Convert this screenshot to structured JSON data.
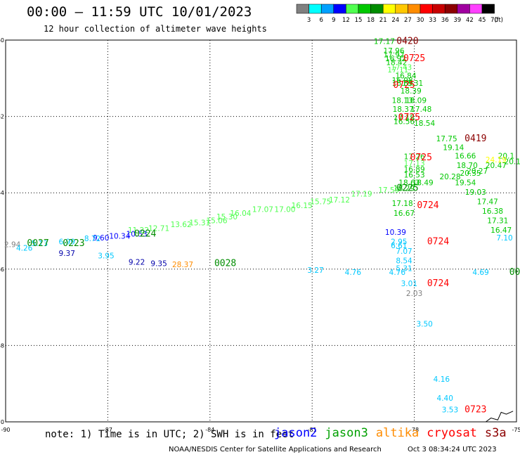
{
  "title": "00:00 – 11:59 UTC 10/01/2023",
  "subtitle": "12 hour collection of altimeter wave heights",
  "colorbar": {
    "unit": "(ft)",
    "stops": [
      {
        "label": "3",
        "color": "#808080"
      },
      {
        "label": "6",
        "color": "#00ffff"
      },
      {
        "label": "9",
        "color": "#00a0ff"
      },
      {
        "label": "12",
        "color": "#0000ff"
      },
      {
        "label": "15",
        "color": "#50ff50"
      },
      {
        "label": "18",
        "color": "#00c800"
      },
      {
        "label": "21",
        "color": "#008c00"
      },
      {
        "label": "24",
        "color": "#ffff00"
      },
      {
        "label": "27",
        "color": "#ffc800"
      },
      {
        "label": "30",
        "color": "#ff8c00"
      },
      {
        "label": "33",
        "color": "#ff0000"
      },
      {
        "label": "36",
        "color": "#c80000"
      },
      {
        "label": "39",
        "color": "#8c0000"
      },
      {
        "label": "42",
        "color": "#a000a0"
      },
      {
        "label": "45",
        "color": "#ff40ff"
      },
      {
        "label": "70",
        "color": "#000000"
      }
    ]
  },
  "map": {
    "lon_range": [
      -90,
      -75
    ],
    "lat_range": [
      -70,
      -60
    ],
    "lon_ticks": [
      "-90",
      "-87",
      "-84",
      "-81",
      "-78",
      "-75"
    ],
    "lat_ticks": [
      "-60",
      "-62",
      "-64",
      "-66",
      "-68",
      "-70"
    ],
    "grid": true
  },
  "observations": [
    {
      "t": "17.17",
      "c": "#00c800",
      "lon": -78.88,
      "lat": -60.1
    },
    {
      "t": "17.96",
      "c": "#00c800",
      "lon": -78.6,
      "lat": -60.35
    },
    {
      "t": "17.92",
      "c": "#00c800",
      "lon": -78.6,
      "lat": -60.45
    },
    {
      "t": "18.42",
      "c": "#00c800",
      "lon": -78.52,
      "lat": -60.65
    },
    {
      "t": "16.92",
      "c": "#00c800",
      "lon": -78.55,
      "lat": -60.55
    },
    {
      "t": "17.43",
      "c": "#50ff50",
      "lon": -78.38,
      "lat": -60.78
    },
    {
      "t": "17.11",
      "c": "#50ff50",
      "lon": -78.48,
      "lat": -60.85
    },
    {
      "t": "16.84",
      "c": "#00c800",
      "lon": -78.25,
      "lat": -61.0
    },
    {
      "t": "16.98",
      "c": "#00c800",
      "lon": -78.35,
      "lat": -61.12
    },
    {
      "t": "16.89",
      "c": "#00c800",
      "lon": -78.35,
      "lat": -61.2
    },
    {
      "t": "18.31",
      "c": "#00c800",
      "lon": -78.05,
      "lat": -61.2
    },
    {
      "t": "18.39",
      "c": "#00c800",
      "lon": -78.1,
      "lat": -61.4
    },
    {
      "t": "18.13",
      "c": "#00c800",
      "lon": -78.35,
      "lat": -61.65
    },
    {
      "t": "18.09",
      "c": "#00c800",
      "lon": -77.95,
      "lat": -61.65
    },
    {
      "t": "18.37",
      "c": "#00c800",
      "lon": -78.33,
      "lat": -61.88
    },
    {
      "t": "17.48",
      "c": "#00c800",
      "lon": -77.8,
      "lat": -61.88
    },
    {
      "t": "17.18",
      "c": "#00c800",
      "lon": -78.3,
      "lat": -62.1
    },
    {
      "t": "16.56",
      "c": "#00c800",
      "lon": -78.3,
      "lat": -62.2
    },
    {
      "t": "18.54",
      "c": "#00c800",
      "lon": -77.7,
      "lat": -62.25
    },
    {
      "t": "17.75",
      "c": "#00c800",
      "lon": -77.05,
      "lat": -62.65
    },
    {
      "t": "19.14",
      "c": "#00c800",
      "lon": -76.85,
      "lat": -62.88
    },
    {
      "t": "16.66",
      "c": "#00c800",
      "lon": -76.5,
      "lat": -63.1
    },
    {
      "t": "17.26",
      "c": "#00c800",
      "lon": -78.0,
      "lat": -63.12
    },
    {
      "t": "17.13",
      "c": "#50ff50",
      "lon": -78.0,
      "lat": -63.3
    },
    {
      "t": "16.89",
      "c": "#00c800",
      "lon": -78.0,
      "lat": -63.45
    },
    {
      "t": "16.53",
      "c": "#00c800",
      "lon": -78.0,
      "lat": -63.6
    },
    {
      "t": "18.70",
      "c": "#00c800",
      "lon": -76.45,
      "lat": -63.35
    },
    {
      "t": "20.27",
      "c": "#00c800",
      "lon": -76.15,
      "lat": -63.5
    },
    {
      "t": "20.47",
      "c": "#00c800",
      "lon": -75.6,
      "lat": -63.35
    },
    {
      "t": "20.15",
      "c": "#00c800",
      "lon": -75.05,
      "lat": -63.25
    },
    {
      "t": "20.28",
      "c": "#00c800",
      "lon": -76.95,
      "lat": -63.65
    },
    {
      "t": "20.35",
      "c": "#00c800",
      "lon": -76.35,
      "lat": -63.55
    },
    {
      "t": "19.54",
      "c": "#00c800",
      "lon": -76.5,
      "lat": -63.8
    },
    {
      "t": "19.03",
      "c": "#00c800",
      "lon": -76.2,
      "lat": -64.05
    },
    {
      "t": "17.47",
      "c": "#00c800",
      "lon": -75.85,
      "lat": -64.3
    },
    {
      "t": "16.38",
      "c": "#00c800",
      "lon": -75.7,
      "lat": -64.55
    },
    {
      "t": "17.31",
      "c": "#00c800",
      "lon": -75.55,
      "lat": -64.8
    },
    {
      "t": "16.47",
      "c": "#00c800",
      "lon": -75.45,
      "lat": -65.05
    },
    {
      "t": "7.10",
      "c": "#00c8ff",
      "lon": -75.35,
      "lat": -65.25
    },
    {
      "t": "18.63",
      "c": "#00c800",
      "lon": -78.15,
      "lat": -63.8
    },
    {
      "t": "18.49",
      "c": "#00c800",
      "lon": -77.75,
      "lat": -63.8
    },
    {
      "t": "18.29",
      "c": "#00c800",
      "lon": -78.3,
      "lat": -63.95
    },
    {
      "t": "17.59",
      "c": "#50ff50",
      "lon": -78.75,
      "lat": -64.0
    },
    {
      "t": "17.18",
      "c": "#00c800",
      "lon": -78.35,
      "lat": -64.35
    },
    {
      "t": "16.67",
      "c": "#00c800",
      "lon": -78.3,
      "lat": -64.6
    },
    {
      "t": "17.19",
      "c": "#50ff50",
      "lon": -79.55,
      "lat": -64.1
    },
    {
      "t": "17.12",
      "c": "#50ff50",
      "lon": -80.2,
      "lat": -64.25
    },
    {
      "t": "15.75",
      "c": "#50ff50",
      "lon": -80.75,
      "lat": -64.3
    },
    {
      "t": "16.15",
      "c": "#50ff50",
      "lon": -81.3,
      "lat": -64.4
    },
    {
      "t": "17.00",
      "c": "#50ff50",
      "lon": -81.8,
      "lat": -64.5
    },
    {
      "t": "17.07",
      "c": "#50ff50",
      "lon": -82.45,
      "lat": -64.5
    },
    {
      "t": "16.04",
      "c": "#50ff50",
      "lon": -83.1,
      "lat": -64.6
    },
    {
      "t": "15.30",
      "c": "#50ff50",
      "lon": -83.5,
      "lat": -64.7
    },
    {
      "t": "15.06",
      "c": "#50ff50",
      "lon": -83.8,
      "lat": -64.8
    },
    {
      "t": "15.31",
      "c": "#50ff50",
      "lon": -84.3,
      "lat": -64.85
    },
    {
      "t": "13.62",
      "c": "#50ff50",
      "lon": -84.85,
      "lat": -64.9
    },
    {
      "t": "12.71",
      "c": "#50ff50",
      "lon": -85.5,
      "lat": -65.0
    },
    {
      "t": "11.22",
      "c": "#50ff50",
      "lon": -86.1,
      "lat": -65.05
    },
    {
      "t": "10.53",
      "c": "#0000ff",
      "lon": -86.15,
      "lat": -65.15
    },
    {
      "t": "10.34",
      "c": "#0000ff",
      "lon": -86.65,
      "lat": -65.2
    },
    {
      "t": "9.60",
      "c": "#0000ff",
      "lon": -87.2,
      "lat": -65.25
    },
    {
      "t": "8.72",
      "c": "#00c8ff",
      "lon": -87.45,
      "lat": -65.27
    },
    {
      "t": "6.99",
      "c": "#00c8ff",
      "lon": -88.2,
      "lat": -65.35
    },
    {
      "t": "5.13",
      "c": "#00c8ff",
      "lon": -89.0,
      "lat": -65.4
    },
    {
      "t": "2.94",
      "c": "#808080",
      "lon": -89.8,
      "lat": -65.42
    },
    {
      "t": "4.26",
      "c": "#00c8ff",
      "lon": -89.45,
      "lat": -65.52
    },
    {
      "t": "9.37",
      "c": "#0000aa",
      "lon": -88.2,
      "lat": -65.65
    },
    {
      "t": "3.95",
      "c": "#00c8ff",
      "lon": -87.05,
      "lat": -65.72
    },
    {
      "t": "9.22",
      "c": "#0000aa",
      "lon": -86.15,
      "lat": -65.88
    },
    {
      "t": "9.35",
      "c": "#0000aa",
      "lon": -85.5,
      "lat": -65.92
    },
    {
      "t": "28.37",
      "c": "#ff8c00",
      "lon": -84.8,
      "lat": -65.95
    },
    {
      "t": "3.27",
      "c": "#00c8ff",
      "lon": -80.9,
      "lat": -66.1
    },
    {
      "t": "4.76",
      "c": "#00c8ff",
      "lon": -79.8,
      "lat": -66.15
    },
    {
      "t": "10.39",
      "c": "#0000ff",
      "lon": -78.55,
      "lat": -65.1
    },
    {
      "t": "2.95",
      "c": "#00c8ff",
      "lon": -78.45,
      "lat": -65.35
    },
    {
      "t": "6.61",
      "c": "#00c8ff",
      "lon": -78.45,
      "lat": -65.45
    },
    {
      "t": "7.07",
      "c": "#00c8ff",
      "lon": -78.3,
      "lat": -65.6
    },
    {
      "t": "8.54",
      "c": "#00c8ff",
      "lon": -78.3,
      "lat": -65.85
    },
    {
      "t": "5.31",
      "c": "#00c8ff",
      "lon": -78.3,
      "lat": -66.05
    },
    {
      "t": "4.76",
      "c": "#00c8ff",
      "lon": -78.5,
      "lat": -66.15
    },
    {
      "t": "3.01",
      "c": "#00c8ff",
      "lon": -78.15,
      "lat": -66.45
    },
    {
      "t": "2.03",
      "c": "#808080",
      "lon": -78.0,
      "lat": -66.7
    },
    {
      "t": "3.50",
      "c": "#00c8ff",
      "lon": -77.7,
      "lat": -67.5
    },
    {
      "t": "4.69",
      "c": "#00c8ff",
      "lon": -76.05,
      "lat": -66.15
    },
    {
      "t": "4.16",
      "c": "#00c8ff",
      "lon": -77.2,
      "lat": -68.95
    },
    {
      "t": "4.40",
      "c": "#00c8ff",
      "lon": -77.1,
      "lat": -69.45
    },
    {
      "t": "3.53",
      "c": "#00c8ff",
      "lon": -76.95,
      "lat": -69.75
    },
    {
      "t": "20.1",
      "c": "#00c800",
      "lon": -75.3,
      "lat": -63.1
    },
    {
      "t": "24.19",
      "c": "#ffff00",
      "lon": -75.6,
      "lat": -63.2
    }
  ],
  "time_labels": [
    {
      "t": "0420",
      "c": "#8c0000",
      "lon": -78.2,
      "lat": -60.1
    },
    {
      "t": "0725",
      "c": "#ff0000",
      "lon": -78.0,
      "lat": -60.55
    },
    {
      "t": "0725",
      "c": "#ff0000",
      "lon": -78.3,
      "lat": -61.25
    },
    {
      "t": "0725",
      "c": "#ff0000",
      "lon": -78.15,
      "lat": -62.1
    },
    {
      "t": "0419",
      "c": "#8c0000",
      "lon": -76.2,
      "lat": -62.65
    },
    {
      "t": "0725",
      "c": "#ff0000",
      "lon": -77.8,
      "lat": -63.15
    },
    {
      "t": "0225",
      "c": "#008c00",
      "lon": -78.2,
      "lat": -63.95
    },
    {
      "t": "0724",
      "c": "#ff0000",
      "lon": -77.6,
      "lat": -64.4
    },
    {
      "t": "0724",
      "c": "#ff0000",
      "lon": -77.3,
      "lat": -65.35
    },
    {
      "t": "0724",
      "c": "#ff0000",
      "lon": -77.3,
      "lat": -66.45
    },
    {
      "t": "0224",
      "c": "#008c00",
      "lon": -85.9,
      "lat": -65.15
    },
    {
      "t": "0223",
      "c": "#008c00",
      "lon": -88.0,
      "lat": -65.4
    },
    {
      "t": "0027",
      "c": "#008c00",
      "lon": -89.05,
      "lat": -65.4
    },
    {
      "t": "0028",
      "c": "#008c00",
      "lon": -83.55,
      "lat": -65.92
    },
    {
      "t": "0723",
      "c": "#ff0000",
      "lon": -76.2,
      "lat": -69.75
    },
    {
      "t": "00",
      "c": "#008c00",
      "lon": -75.05,
      "lat": -66.15
    }
  ],
  "footer": {
    "note": "note: 1) Time is in UTC; 2) SWH is in feet",
    "satellites": [
      {
        "name": "jason2",
        "color": "#0000ff"
      },
      {
        "name": "jason3",
        "color": "#00a000"
      },
      {
        "name": "altika",
        "color": "#ff8c00"
      },
      {
        "name": "cryosat",
        "color": "#ff0000"
      },
      {
        "name": "s3a",
        "color": "#8c0000"
      }
    ],
    "credit": "NOAA/NESDIS Center for Satellite Applications and Research",
    "timestamp": "Oct  3 08:34:24 UTC 2023"
  }
}
